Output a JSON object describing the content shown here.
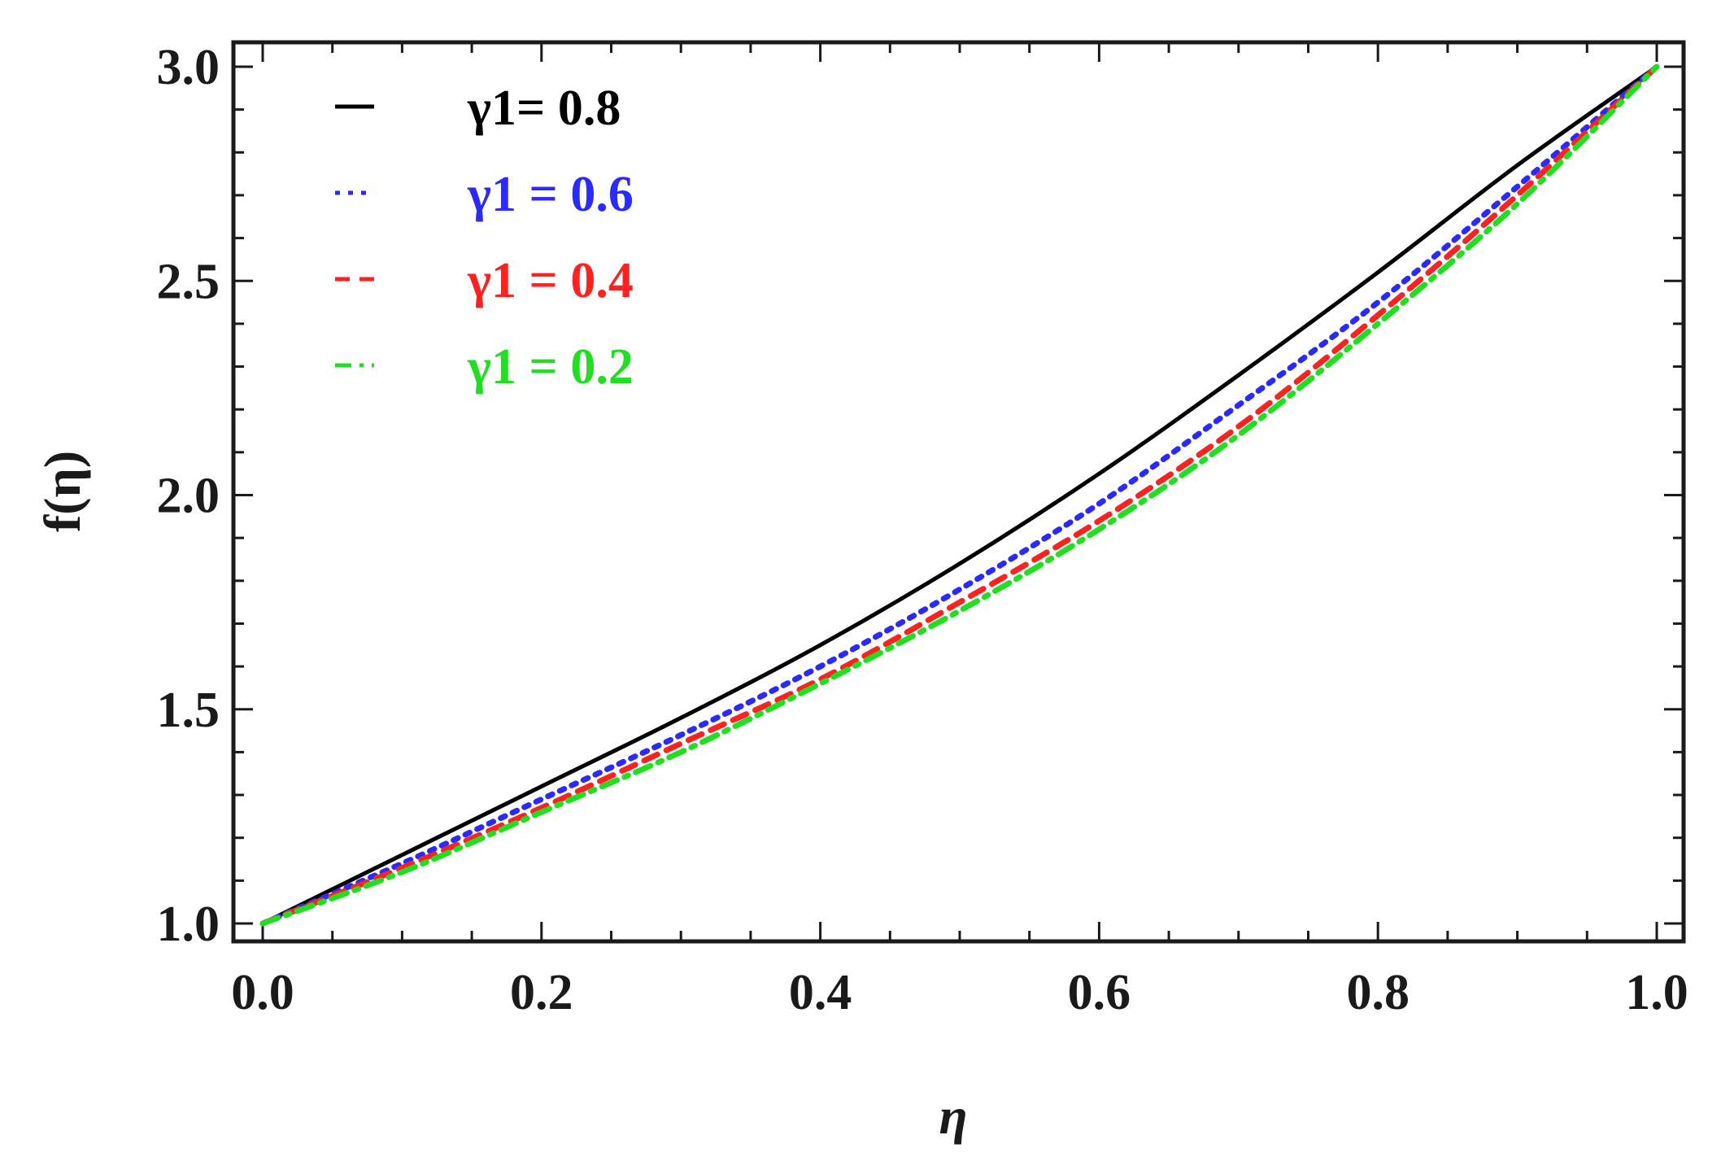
{
  "chart_data": {
    "type": "line",
    "title": "",
    "xlabel": "η",
    "ylabel": "f(η)",
    "xlim": [
      0,
      1
    ],
    "ylim": [
      1,
      3
    ],
    "x_ticks": [
      "0.0",
      "0.2",
      "0.4",
      "0.6",
      "0.8",
      "1.0"
    ],
    "y_ticks": [
      "1.0",
      "1.5",
      "2.0",
      "2.5",
      "3.0"
    ],
    "grid": false,
    "legend_position": "top-left",
    "series": [
      {
        "name": "γ1= 0.8",
        "color": "#000000",
        "style": "solid",
        "x": [
          0.0,
          0.1,
          0.2,
          0.3,
          0.4,
          0.5,
          0.6,
          0.7,
          0.8,
          0.9,
          1.0
        ],
        "y": [
          1.0,
          1.16,
          1.32,
          1.48,
          1.65,
          1.84,
          2.05,
          2.28,
          2.52,
          2.77,
          3.0
        ]
      },
      {
        "name": "γ1  = 0.6",
        "color": "#2a2aff",
        "style": "dotted",
        "x": [
          0.0,
          0.1,
          0.2,
          0.3,
          0.4,
          0.5,
          0.6,
          0.7,
          0.8,
          0.9,
          1.0
        ],
        "y": [
          1.0,
          1.14,
          1.29,
          1.44,
          1.6,
          1.78,
          1.98,
          2.21,
          2.45,
          2.72,
          3.0
        ]
      },
      {
        "name": "γ1  = 0.4",
        "color": "#ff2020",
        "style": "dashed",
        "x": [
          0.0,
          0.1,
          0.2,
          0.3,
          0.4,
          0.5,
          0.6,
          0.7,
          0.8,
          0.9,
          1.0
        ],
        "y": [
          1.0,
          1.13,
          1.27,
          1.42,
          1.57,
          1.75,
          1.94,
          2.16,
          2.42,
          2.7,
          3.0
        ]
      },
      {
        "name": "γ1  = 0.2",
        "color": "#22dd22",
        "style": "dashdot",
        "x": [
          0.0,
          0.1,
          0.2,
          0.3,
          0.4,
          0.5,
          0.6,
          0.7,
          0.8,
          0.9,
          1.0
        ],
        "y": [
          1.0,
          1.12,
          1.26,
          1.4,
          1.56,
          1.73,
          1.92,
          2.14,
          2.4,
          2.68,
          3.0
        ]
      }
    ]
  }
}
